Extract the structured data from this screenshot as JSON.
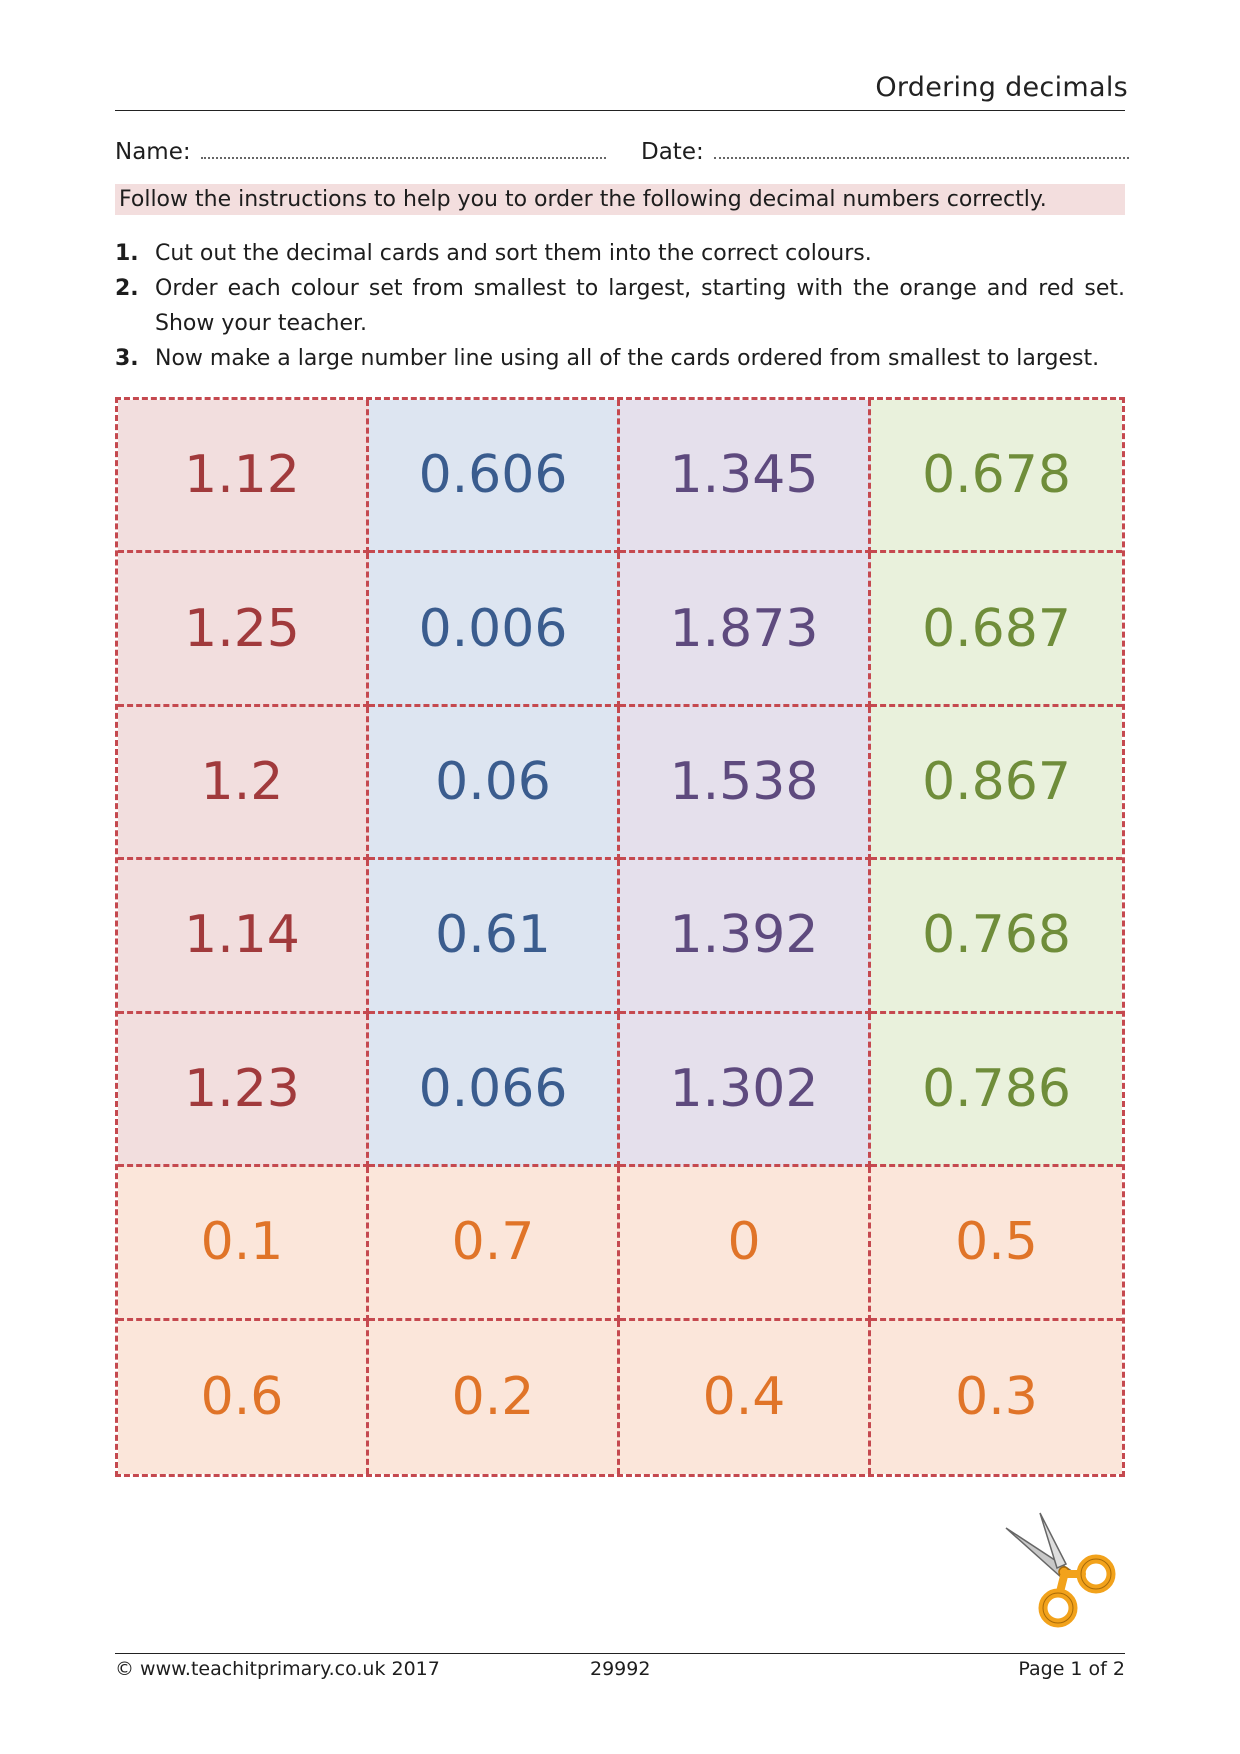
{
  "header": {
    "title": "Ordering decimals"
  },
  "fields": {
    "name_label": "Name:",
    "date_label": "Date:"
  },
  "instruction_banner": "Follow the instructions to help you to order the following decimal numbers correctly.",
  "steps": [
    {
      "num": "1.",
      "text": "Cut out the decimal cards and sort them into the correct colours."
    },
    {
      "num": "2.",
      "text": "Order each colour set from smallest to largest, starting with the orange and red set. Show your teacher."
    },
    {
      "num": "3.",
      "text": "Now make a large number line using all of the cards ordered from smallest to largest."
    }
  ],
  "cards": [
    [
      "1.12",
      "0.606",
      "1.345",
      "0.678"
    ],
    [
      "1.25",
      "0.006",
      "1.873",
      "0.687"
    ],
    [
      "1.2",
      "0.06",
      "1.538",
      "0.867"
    ],
    [
      "1.14",
      "0.61",
      "1.392",
      "0.768"
    ],
    [
      "1.23",
      "0.066",
      "1.302",
      "0.786"
    ],
    [
      "0.1",
      "0.7",
      "0",
      "0.5"
    ],
    [
      "0.6",
      "0.2",
      "0.4",
      "0.3"
    ]
  ],
  "colors": {
    "red_bg": "#f2dede",
    "red_text": "#a13a3c",
    "blue_bg": "#dde5f1",
    "blue_text": "#3a5c8e",
    "purple_bg": "#e5e0ec",
    "purple_text": "#5e4a7e",
    "green_bg": "#e9f1dc",
    "green_text": "#6f8d3a",
    "orange_bg": "#fbe6da",
    "orange_text": "#e07428",
    "dash_border": "#c5494f"
  },
  "icons": {
    "scissors": "scissors-icon"
  },
  "footer": {
    "copyright": "© www.teachitprimary.co.uk 2017",
    "code": "29992",
    "page": "Page 1 of 2"
  }
}
